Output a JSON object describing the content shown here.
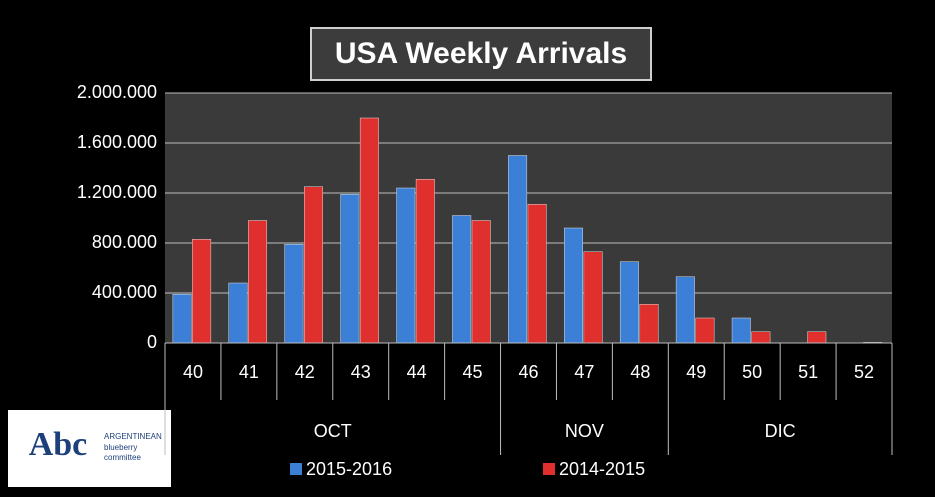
{
  "chart_data": {
    "type": "bar",
    "title": "USA  Weekly Arrivals",
    "categories": [
      "40",
      "41",
      "42",
      "43",
      "44",
      "45",
      "46",
      "47",
      "48",
      "49",
      "50",
      "51",
      "52"
    ],
    "groups": [
      {
        "label": "OCT",
        "size": 6
      },
      {
        "label": "NOV",
        "size": 3
      },
      {
        "label": "DIC",
        "size": 4
      }
    ],
    "series": [
      {
        "name": "2015-2016",
        "color": "#3b7fd6",
        "values": [
          390000,
          480000,
          790000,
          1190000,
          1240000,
          1020000,
          1500000,
          920000,
          650000,
          530000,
          200000,
          0,
          0
        ]
      },
      {
        "name": "2014-2015",
        "color": "#e0302e",
        "values": [
          830000,
          980000,
          1250000,
          1800000,
          1310000,
          980000,
          1110000,
          730000,
          310000,
          200000,
          90000,
          90000,
          5000
        ]
      }
    ],
    "ylim": [
      0,
      2000000
    ],
    "yticks": [
      0,
      {
        "value": 400000,
        "label": "400.000"
      },
      {
        "value": 800000,
        "label": "800.000"
      },
      {
        "value": 1200000,
        "label": "1.200.000"
      },
      {
        "value": 1600000,
        "label": "1.600.000"
      },
      {
        "value": 2000000,
        "label": "2.000.000"
      }
    ],
    "grid": true,
    "legend": "bottom"
  },
  "logo": {
    "mark": "Abc",
    "lines": [
      "ARGENTINEAN",
      "blueberry",
      "committee"
    ]
  }
}
